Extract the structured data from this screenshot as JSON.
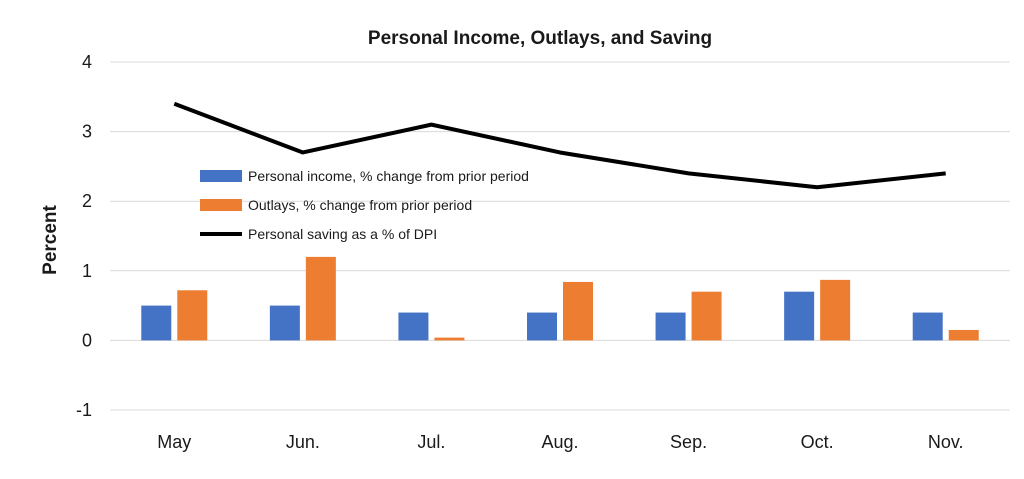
{
  "chart_data": {
    "type": "bar",
    "title": "Personal Income, Outlays, and Saving",
    "ylabel": "Percent",
    "xlabel": "",
    "ylim": [
      -1,
      4
    ],
    "yticks": [
      -1,
      0,
      1,
      2,
      3,
      4
    ],
    "grid": true,
    "legend_position": "center-left",
    "categories": [
      "May",
      "Jun.",
      "Jul.",
      "Aug.",
      "Sep.",
      "Oct.",
      "Nov."
    ],
    "series": [
      {
        "name": "Personal income, % change from prior period",
        "kind": "bar",
        "color": "#4472C4",
        "values": [
          0.5,
          0.5,
          0.4,
          0.4,
          0.4,
          0.7,
          0.4
        ]
      },
      {
        "name": "Outlays, % change from prior period",
        "kind": "bar",
        "color": "#ED7D31",
        "values": [
          0.72,
          1.2,
          0.04,
          0.84,
          0.7,
          0.87,
          0.15
        ]
      },
      {
        "name": "Personal saving as a % of DPI",
        "kind": "line",
        "color": "#000000",
        "values": [
          3.4,
          2.7,
          3.1,
          2.7,
          2.4,
          2.2,
          2.4
        ]
      }
    ]
  }
}
